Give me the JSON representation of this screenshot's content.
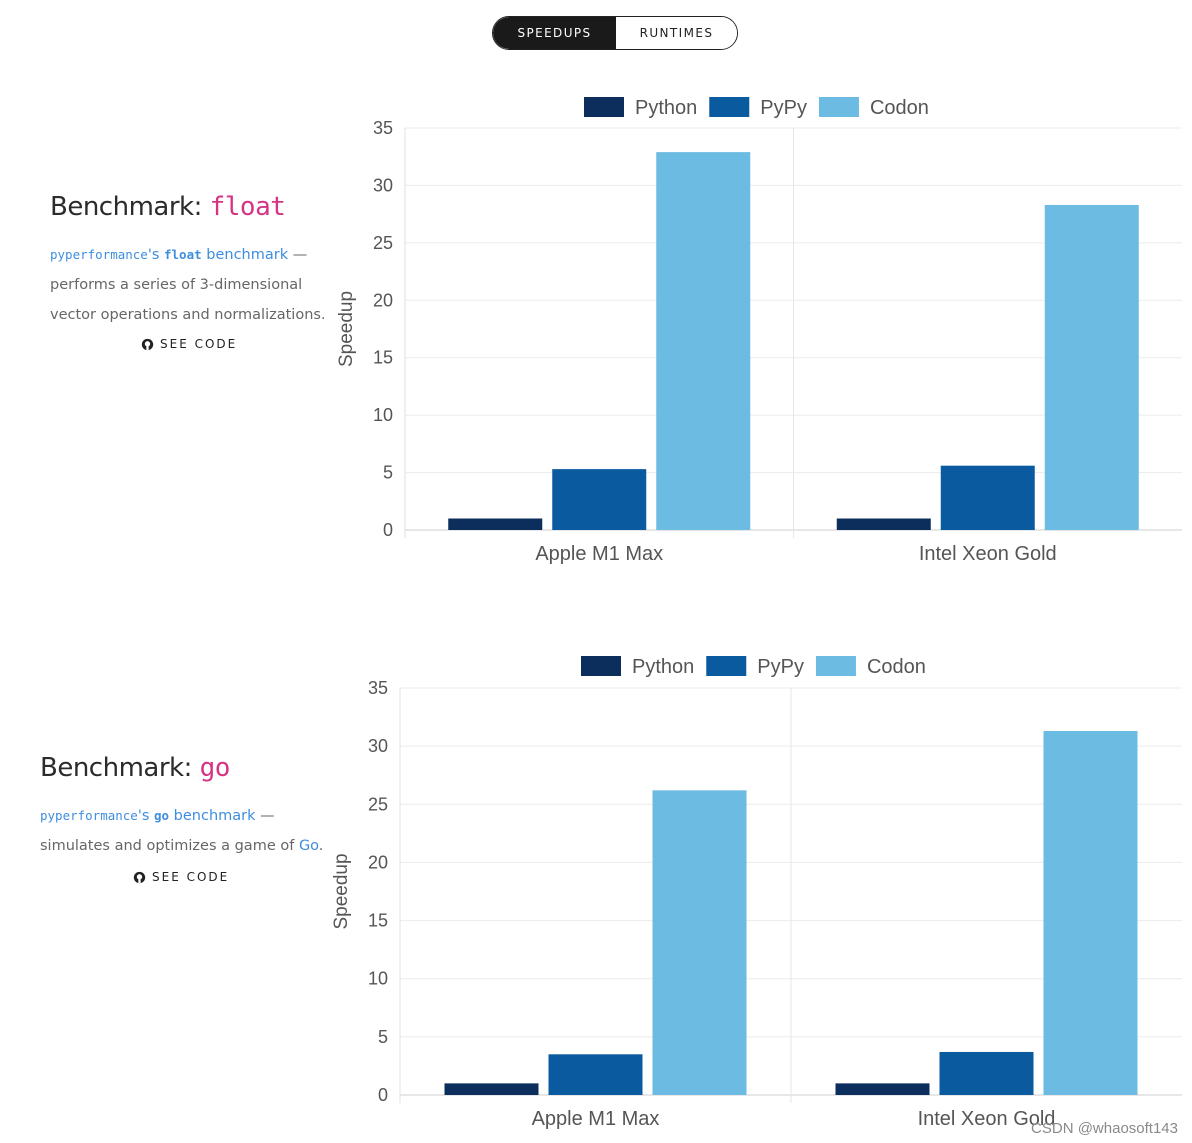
{
  "toggle": {
    "active": "SPEEDUPS",
    "inactive": "RUNTIMES"
  },
  "benchmarks": [
    {
      "title_prefix": "Benchmark: ",
      "name": "float",
      "suite": "pyperformance",
      "suite_suffix": "'s ",
      "bench_code": "float",
      "bench_word": " benchmark",
      "dash": " —",
      "description": "performs a series of 3-dimensional vector operations and normalizations.",
      "see_code": "SEE CODE"
    },
    {
      "title_prefix": "Benchmark: ",
      "name": "go",
      "suite": "pyperformance",
      "suite_suffix": "'s ",
      "bench_code": "go",
      "bench_word": " benchmark",
      "dash": " —",
      "description": "simulates and optimizes a game of ",
      "description_link": "Go",
      "description_end": ".",
      "see_code": "SEE CODE"
    }
  ],
  "colors": {
    "Python": "#0b2e5c",
    "PyPy": "#0a5aa0",
    "Codon": "#6bbbe3"
  },
  "chart_data": [
    {
      "type": "bar",
      "categories": [
        "Apple M1 Max",
        "Intel Xeon Gold"
      ],
      "series": [
        {
          "name": "Python",
          "values": [
            1.0,
            1.0
          ]
        },
        {
          "name": "PyPy",
          "values": [
            5.3,
            5.6
          ]
        },
        {
          "name": "Codon",
          "values": [
            32.9,
            28.3
          ]
        }
      ],
      "ylabel": "Speedup",
      "yticks": [
        0,
        5,
        10,
        15,
        20,
        25,
        30,
        35
      ],
      "ylim": [
        0,
        35
      ],
      "legend": "top"
    },
    {
      "type": "bar",
      "categories": [
        "Apple M1 Max",
        "Intel Xeon Gold"
      ],
      "series": [
        {
          "name": "Python",
          "values": [
            1.0,
            1.0
          ]
        },
        {
          "name": "PyPy",
          "values": [
            3.5,
            3.7
          ]
        },
        {
          "name": "Codon",
          "values": [
            26.2,
            31.3
          ]
        }
      ],
      "ylabel": "Speedup",
      "yticks": [
        0,
        5,
        10,
        15,
        20,
        25,
        30,
        35
      ],
      "ylim": [
        0,
        35
      ],
      "legend": "top"
    }
  ],
  "watermark": "CSDN @whaosoft143"
}
